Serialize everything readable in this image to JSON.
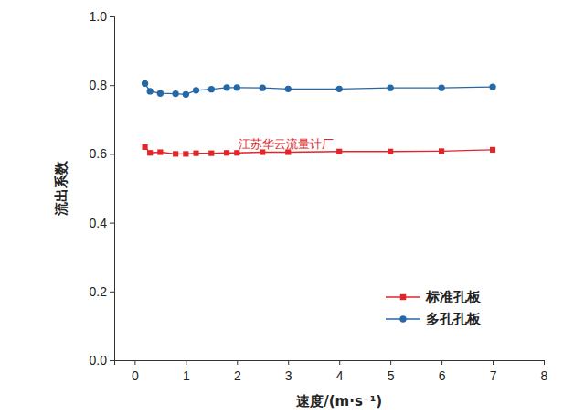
{
  "chart_data": {
    "type": "line",
    "x_label": "速度/(m·s⁻¹)",
    "y_label": "流出系数",
    "annotations": [
      "江苏华云流量计厂"
    ],
    "x": [
      0.2,
      0.3,
      0.5,
      0.8,
      1.0,
      1.2,
      1.5,
      1.8,
      2.0,
      2.5,
      3,
      4,
      5,
      6,
      7
    ],
    "series": [
      {
        "name": "标准孔板",
        "color": "#e0262a",
        "marker": "square",
        "line_style": "solid",
        "values": [
          0.62,
          0.603,
          0.605,
          0.6,
          0.6,
          0.602,
          0.602,
          0.603,
          0.603,
          0.605,
          0.605,
          0.607,
          0.607,
          0.608,
          0.612
        ]
      },
      {
        "name": "多孔孔板",
        "color": "#2667a8",
        "marker": "circle",
        "line_style": "solid",
        "values": [
          0.805,
          0.782,
          0.776,
          0.775,
          0.773,
          0.785,
          0.788,
          0.793,
          0.793,
          0.792,
          0.789,
          0.789,
          0.792,
          0.792,
          0.795
        ]
      }
    ],
    "xlim": [
      -0.4,
      8
    ],
    "xticks": [
      0,
      1,
      2,
      3,
      4,
      5,
      6,
      7,
      8
    ],
    "ylim": [
      0,
      1.0
    ],
    "yticks": [
      {
        "value": 0,
        "label": "0.0"
      },
      {
        "value": 0.2,
        "label": "0.2"
      },
      {
        "value": 0.4,
        "label": "0.4"
      },
      {
        "value": 0.6,
        "label": "0.6"
      },
      {
        "value": 0.8,
        "label": "0.8"
      },
      {
        "value": 1.0,
        "label": "1.0"
      }
    ],
    "grid": false,
    "legend": "lower right"
  }
}
